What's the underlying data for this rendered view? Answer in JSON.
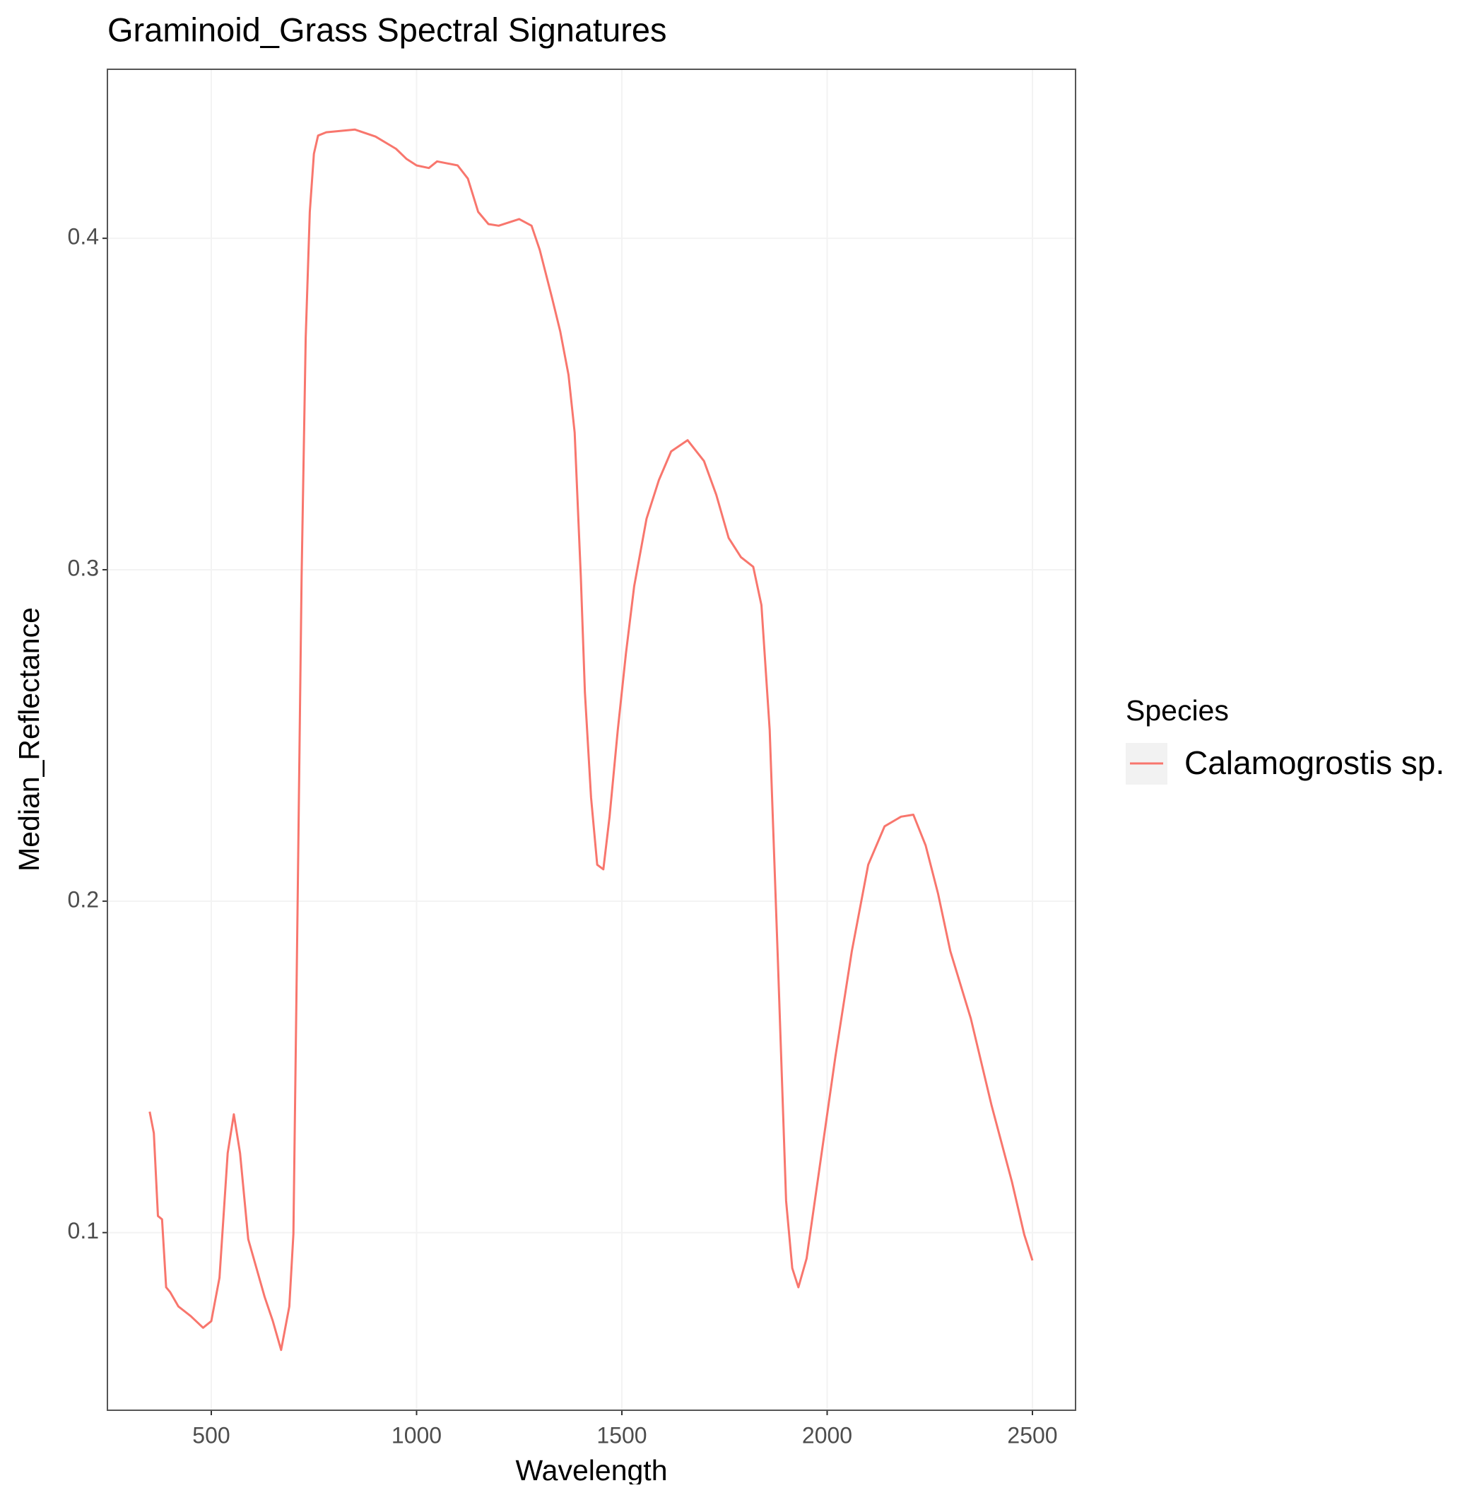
{
  "chart_data": {
    "type": "line",
    "title": "Graminoid_Grass Spectral Signatures",
    "x_label": "Wavelength",
    "y_label": "Median_Reflectance",
    "legend_title": "Species",
    "x": [
      350,
      360,
      370,
      380,
      390,
      400,
      420,
      450,
      480,
      500,
      520,
      540,
      555,
      570,
      590,
      610,
      630,
      650,
      670,
      690,
      700,
      710,
      720,
      730,
      740,
      750,
      760,
      780,
      850,
      900,
      950,
      975,
      1000,
      1030,
      1050,
      1100,
      1125,
      1150,
      1175,
      1200,
      1250,
      1280,
      1300,
      1330,
      1350,
      1370,
      1385,
      1400,
      1410,
      1425,
      1440,
      1455,
      1470,
      1490,
      1510,
      1530,
      1560,
      1590,
      1620,
      1660,
      1700,
      1730,
      1760,
      1790,
      1820,
      1840,
      1860,
      1880,
      1900,
      1915,
      1930,
      1950,
      1980,
      2020,
      2060,
      2100,
      2140,
      2180,
      2210,
      2240,
      2270,
      2300,
      2350,
      2400,
      2450,
      2480,
      2500
    ],
    "series": [
      {
        "name": "Calamogrostis sp.",
        "color": "#f8766d",
        "values": [
          0.1365,
          0.13,
          0.105,
          0.104,
          0.0835,
          0.082,
          0.0777,
          0.0748,
          0.0713,
          0.0733,
          0.0864,
          0.124,
          0.1357,
          0.124,
          0.098,
          0.0893,
          0.0806,
          0.0733,
          0.0646,
          0.0777,
          0.0996,
          0.1965,
          0.298,
          0.37,
          0.408,
          0.4255,
          0.431,
          0.432,
          0.4328,
          0.4307,
          0.427,
          0.424,
          0.422,
          0.4212,
          0.4232,
          0.422,
          0.418,
          0.408,
          0.4043,
          0.4038,
          0.4058,
          0.4038,
          0.3965,
          0.382,
          0.3719,
          0.3588,
          0.3414,
          0.298,
          0.263,
          0.2313,
          0.211,
          0.2096,
          0.2255,
          0.2516,
          0.2748,
          0.295,
          0.3154,
          0.327,
          0.3357,
          0.3391,
          0.3328,
          0.3226,
          0.3096,
          0.3038,
          0.3009,
          0.2893,
          0.2516,
          0.182,
          0.1096,
          0.0893,
          0.0835,
          0.0922,
          0.1183,
          0.153,
          0.1849,
          0.211,
          0.2226,
          0.2255,
          0.2261,
          0.2168,
          0.2023,
          0.1849,
          0.1646,
          0.1386,
          0.1154,
          0.0994,
          0.0916
        ]
      }
    ],
    "xlim": [
      247,
      2605
    ],
    "ylim": [
      0.0464,
      0.451
    ],
    "xticks": [
      500,
      1000,
      1500,
      2000,
      2500
    ],
    "yticks": [
      0.1,
      0.2,
      0.3,
      0.4
    ],
    "grid": true
  }
}
